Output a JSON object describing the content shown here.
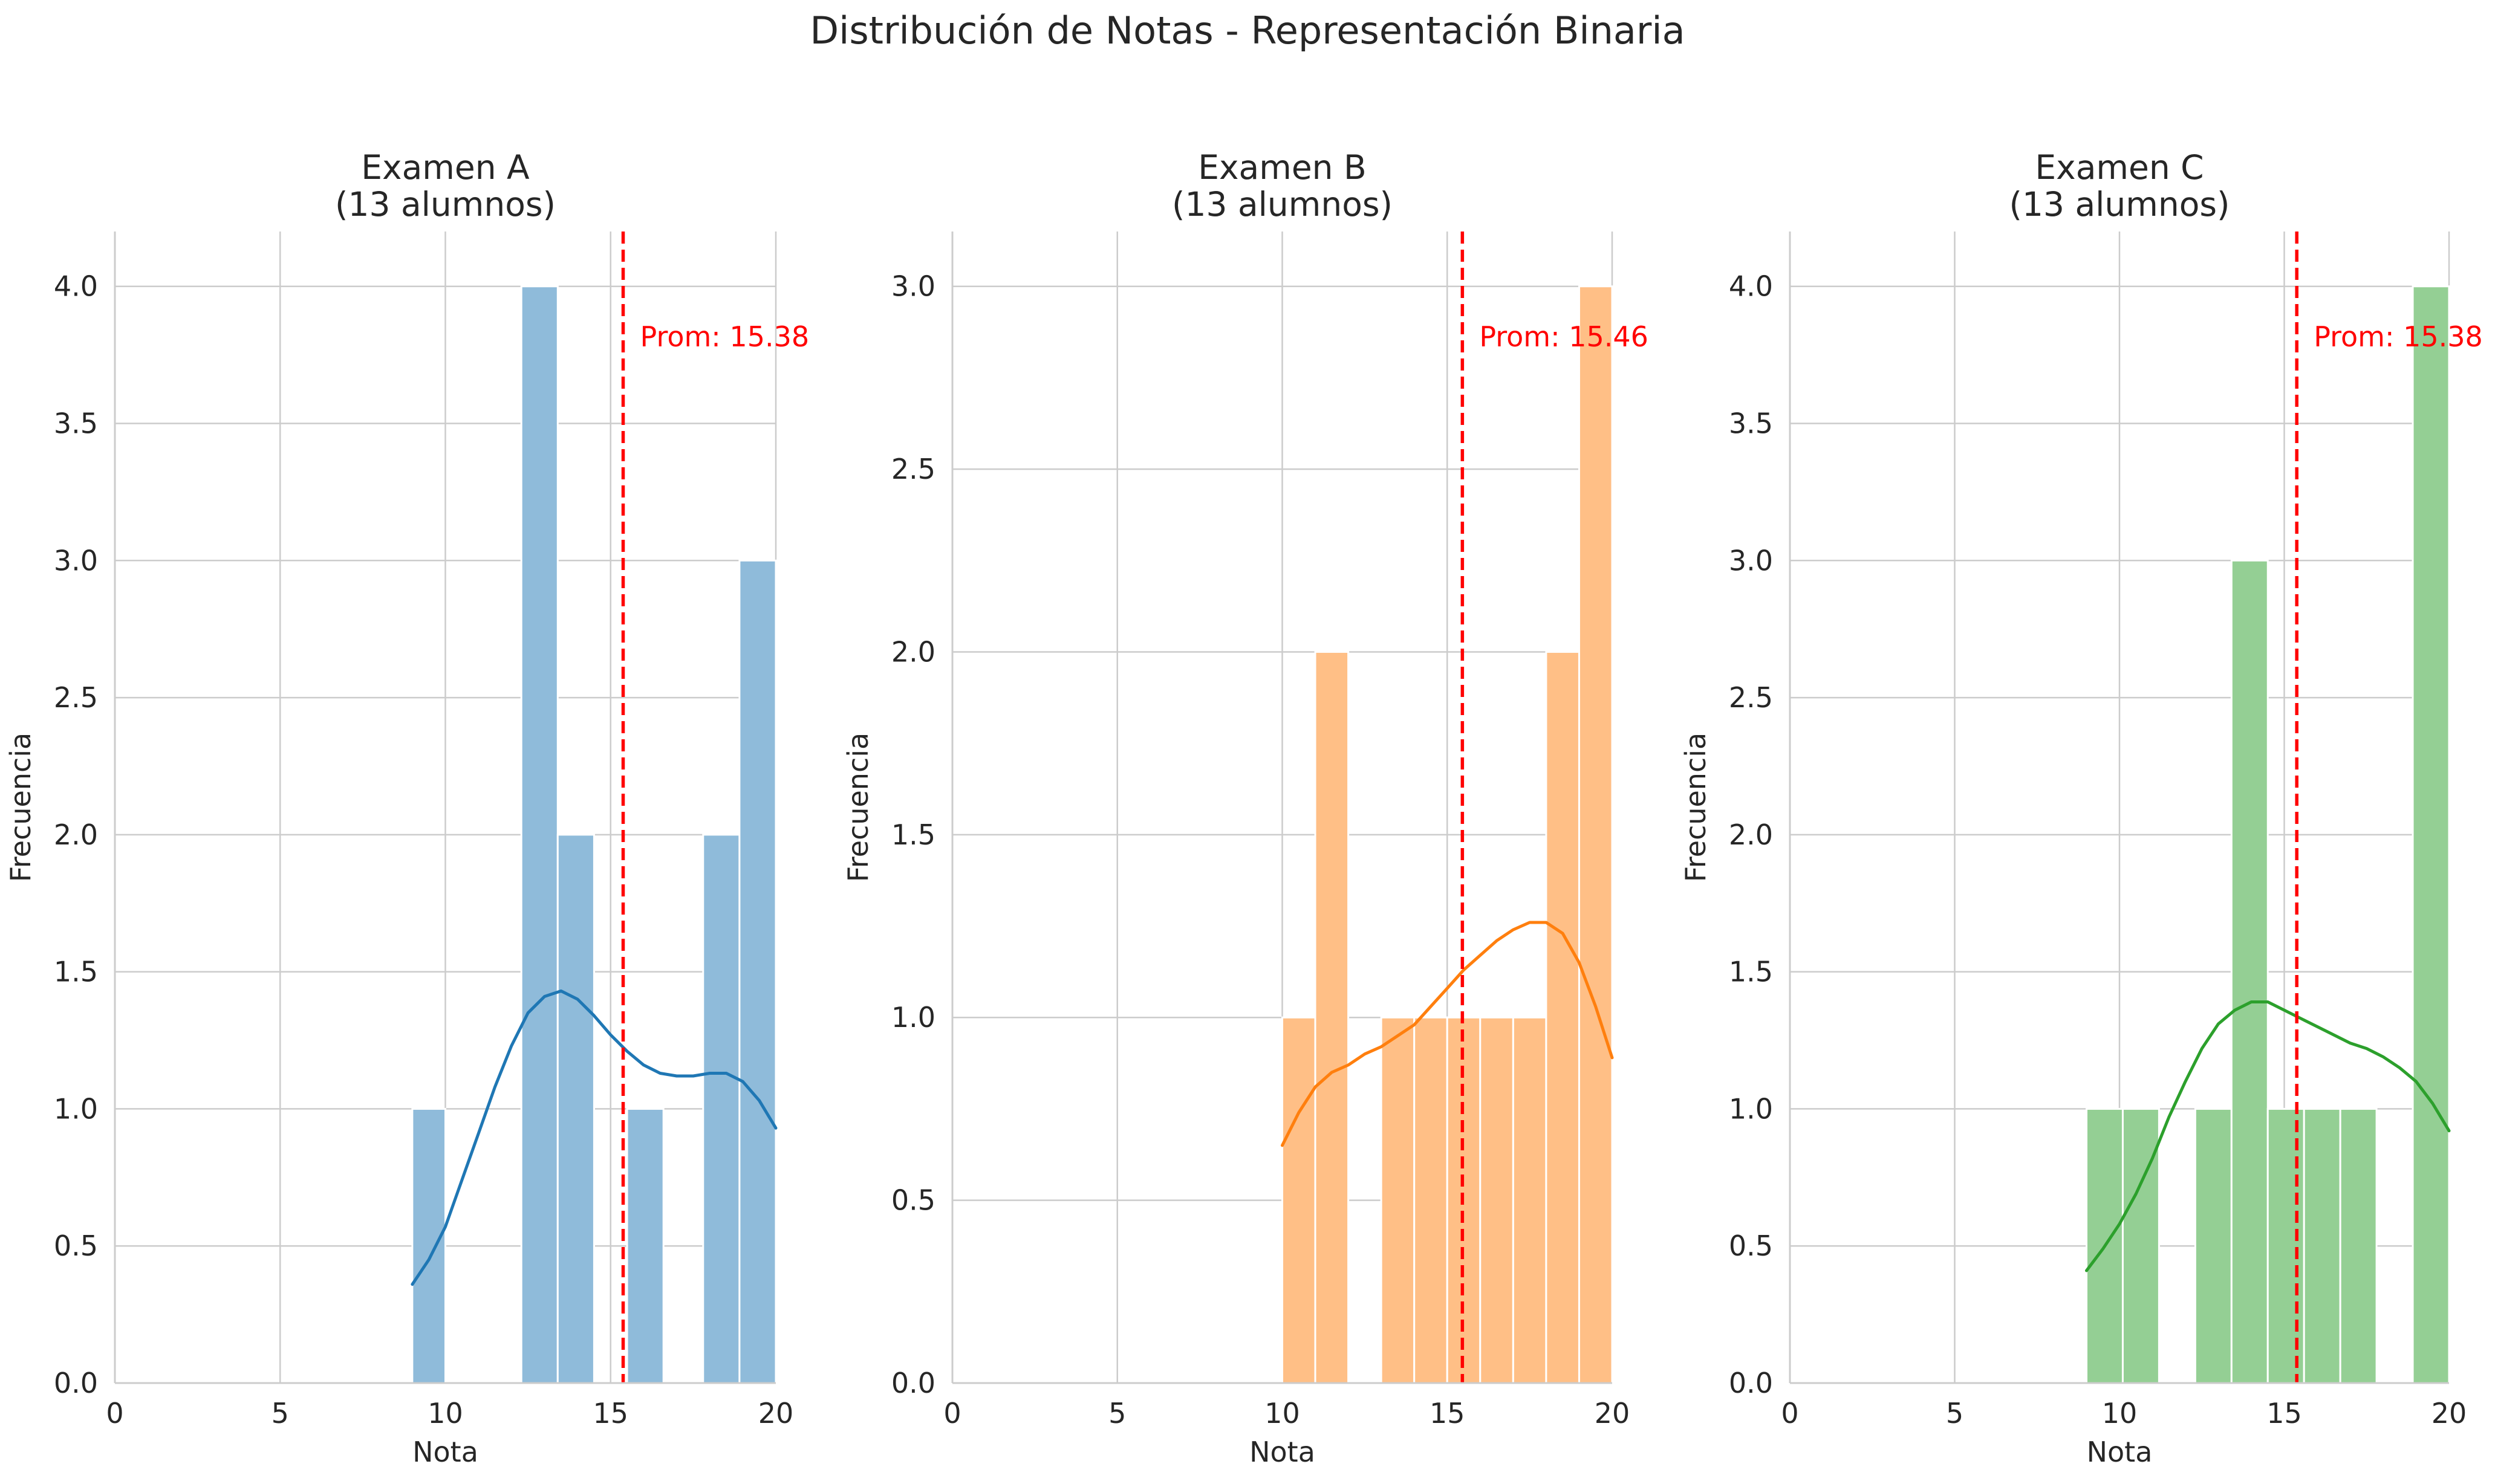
{
  "figure": {
    "title": "Distribución de Notas - Representación Binaria"
  },
  "chart_data": [
    {
      "type": "bar",
      "title_line1": "Examen A",
      "title_line2": "(13 alumnos)",
      "xlabel": "Nota",
      "ylabel": "Frecuencia",
      "xlim": [
        0,
        20
      ],
      "ylim": [
        0,
        4.2
      ],
      "xticks": [
        "0",
        "5",
        "10",
        "15",
        "20"
      ],
      "yticks": [
        "0.0",
        "0.5",
        "1.0",
        "1.5",
        "2.0",
        "2.5",
        "3.0",
        "3.5",
        "4.0"
      ],
      "grid": true,
      "color": "#1f77b4",
      "bar_color": "#8fbbda",
      "bins": [
        {
          "x0": 9.0,
          "x1": 10.0,
          "count": 1
        },
        {
          "x0": 12.3,
          "x1": 13.4,
          "count": 4
        },
        {
          "x0": 13.4,
          "x1": 14.5,
          "count": 2
        },
        {
          "x0": 15.5,
          "x1": 16.6,
          "count": 1
        },
        {
          "x0": 17.8,
          "x1": 18.9,
          "count": 2
        },
        {
          "x0": 18.9,
          "x1": 20.0,
          "count": 3
        }
      ],
      "kde": {
        "x": [
          9.0,
          9.5,
          10.0,
          10.5,
          11.0,
          11.5,
          12.0,
          12.5,
          13.0,
          13.5,
          14.0,
          14.5,
          15.0,
          15.5,
          16.0,
          16.5,
          17.0,
          17.5,
          18.0,
          18.5,
          19.0,
          19.5,
          20.0
        ],
        "y": [
          0.36,
          0.45,
          0.57,
          0.74,
          0.91,
          1.08,
          1.23,
          1.35,
          1.41,
          1.43,
          1.4,
          1.34,
          1.27,
          1.21,
          1.16,
          1.13,
          1.12,
          1.12,
          1.13,
          1.13,
          1.1,
          1.03,
          0.93
        ]
      },
      "mean": 15.38,
      "mean_label": "Prom: 15.38",
      "mean_color": "#ff0000"
    },
    {
      "type": "bar",
      "title_line1": "Examen B",
      "title_line2": "(13 alumnos)",
      "xlabel": "Nota",
      "ylabel": "Frecuencia",
      "xlim": [
        0,
        20
      ],
      "ylim": [
        0,
        3.15
      ],
      "xticks": [
        "0",
        "5",
        "10",
        "15",
        "20"
      ],
      "yticks": [
        "0.0",
        "0.5",
        "1.0",
        "1.5",
        "2.0",
        "2.5",
        "3.0"
      ],
      "grid": true,
      "color": "#ff7f0e",
      "bar_color": "#ffbf86",
      "bins": [
        {
          "x0": 10.0,
          "x1": 11.0,
          "count": 1
        },
        {
          "x0": 11.0,
          "x1": 12.0,
          "count": 2
        },
        {
          "x0": 13.0,
          "x1": 14.0,
          "count": 1
        },
        {
          "x0": 14.0,
          "x1": 15.0,
          "count": 1
        },
        {
          "x0": 15.0,
          "x1": 16.0,
          "count": 1
        },
        {
          "x0": 16.0,
          "x1": 17.0,
          "count": 1
        },
        {
          "x0": 17.0,
          "x1": 18.0,
          "count": 1
        },
        {
          "x0": 18.0,
          "x1": 19.0,
          "count": 2
        },
        {
          "x0": 19.0,
          "x1": 20.0,
          "count": 3
        }
      ],
      "kde": {
        "x": [
          10.0,
          10.5,
          11.0,
          11.5,
          12.0,
          12.5,
          13.0,
          13.5,
          14.0,
          14.5,
          15.0,
          15.5,
          16.0,
          16.5,
          17.0,
          17.5,
          18.0,
          18.5,
          19.0,
          19.5,
          20.0
        ],
        "y": [
          0.65,
          0.74,
          0.81,
          0.85,
          0.87,
          0.9,
          0.92,
          0.95,
          0.98,
          1.03,
          1.08,
          1.13,
          1.17,
          1.21,
          1.24,
          1.26,
          1.26,
          1.23,
          1.15,
          1.03,
          0.89
        ]
      },
      "mean": 15.46,
      "mean_label": "Prom: 15.46",
      "mean_color": "#ff0000"
    },
    {
      "type": "bar",
      "title_line1": "Examen C",
      "title_line2": "(13 alumnos)",
      "xlabel": "Nota",
      "ylabel": "Frecuencia",
      "xlim": [
        0,
        20
      ],
      "ylim": [
        0,
        4.2
      ],
      "xticks": [
        "0",
        "5",
        "10",
        "15",
        "20"
      ],
      "yticks": [
        "0.0",
        "0.5",
        "1.0",
        "1.5",
        "2.0",
        "2.5",
        "3.0",
        "3.5",
        "4.0"
      ],
      "grid": true,
      "color": "#2ca02c",
      "bar_color": "#94cf94",
      "bins": [
        {
          "x0": 9.0,
          "x1": 10.1,
          "count": 1
        },
        {
          "x0": 10.1,
          "x1": 11.2,
          "count": 1
        },
        {
          "x0": 12.3,
          "x1": 13.4,
          "count": 1
        },
        {
          "x0": 13.4,
          "x1": 14.5,
          "count": 3
        },
        {
          "x0": 14.5,
          "x1": 15.6,
          "count": 1
        },
        {
          "x0": 15.6,
          "x1": 16.7,
          "count": 1
        },
        {
          "x0": 16.7,
          "x1": 17.8,
          "count": 1
        },
        {
          "x0": 18.9,
          "x1": 20.0,
          "count": 4
        }
      ],
      "kde": {
        "x": [
          9.0,
          9.5,
          10.0,
          10.5,
          11.0,
          11.5,
          12.0,
          12.5,
          13.0,
          13.5,
          14.0,
          14.5,
          15.0,
          15.5,
          16.0,
          16.5,
          17.0,
          17.5,
          18.0,
          18.5,
          19.0,
          19.5,
          20.0
        ],
        "y": [
          0.41,
          0.49,
          0.58,
          0.69,
          0.82,
          0.97,
          1.1,
          1.22,
          1.31,
          1.36,
          1.39,
          1.39,
          1.36,
          1.33,
          1.3,
          1.27,
          1.24,
          1.22,
          1.19,
          1.15,
          1.1,
          1.02,
          0.92
        ]
      },
      "mean": 15.38,
      "mean_label": "Prom: 15.38",
      "mean_color": "#ff0000"
    }
  ]
}
